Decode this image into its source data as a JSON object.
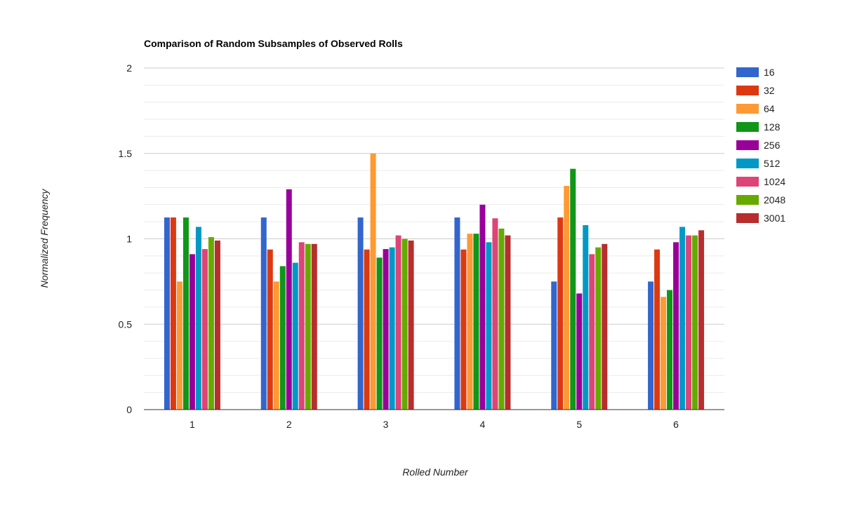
{
  "chart_data": {
    "type": "bar",
    "title": "Comparison of Random Subsamples of Observed Rolls",
    "xlabel": "Rolled Number",
    "ylabel": "Normalized Frequency",
    "categories": [
      "1",
      "2",
      "3",
      "4",
      "5",
      "6"
    ],
    "ylim": [
      0,
      2
    ],
    "yticks": [
      "0",
      "0.5",
      "1",
      "1.5",
      "2"
    ],
    "grid": true,
    "legend_position": "right",
    "series": [
      {
        "name": "16",
        "color": "#3366cc",
        "values": [
          1.125,
          1.125,
          1.125,
          1.125,
          0.75,
          0.75
        ]
      },
      {
        "name": "32",
        "color": "#dc3912",
        "values": [
          1.125,
          0.9375,
          0.9375,
          0.9375,
          1.125,
          0.9375
        ]
      },
      {
        "name": "64",
        "color": "#ff9933",
        "values": [
          0.75,
          0.75,
          1.5,
          1.03,
          1.31,
          0.66
        ]
      },
      {
        "name": "128",
        "color": "#109618",
        "values": [
          1.125,
          0.84,
          0.89,
          1.03,
          1.41,
          0.7
        ]
      },
      {
        "name": "256",
        "color": "#990099",
        "values": [
          0.91,
          1.29,
          0.94,
          1.2,
          0.68,
          0.98
        ]
      },
      {
        "name": "512",
        "color": "#0099c6",
        "values": [
          1.07,
          0.86,
          0.95,
          0.98,
          1.08,
          1.07
        ]
      },
      {
        "name": "1024",
        "color": "#dd4477",
        "values": [
          0.94,
          0.98,
          1.02,
          1.12,
          0.91,
          1.02
        ]
      },
      {
        "name": "2048",
        "color": "#66aa00",
        "values": [
          1.01,
          0.97,
          1.0,
          1.06,
          0.95,
          1.02
        ]
      },
      {
        "name": "3001",
        "color": "#b82e2e",
        "values": [
          0.99,
          0.97,
          0.99,
          1.02,
          0.97,
          1.05
        ]
      }
    ]
  }
}
